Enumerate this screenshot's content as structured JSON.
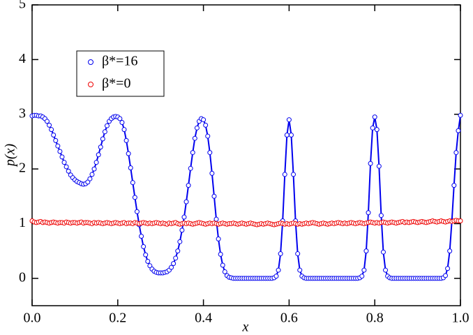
{
  "chart_data": {
    "type": "scatter",
    "xlabel": "x",
    "ylabel": "p(x)",
    "xlim": [
      0,
      1
    ],
    "ylim": [
      -0.5,
      5
    ],
    "xticks": [
      {
        "value": 0,
        "label": "0.0"
      },
      0.2,
      0.4,
      0.6,
      0.8,
      {
        "value": 1,
        "label": "1.0"
      }
    ],
    "yticks": [
      0,
      1,
      2,
      3,
      4,
      5
    ],
    "legend": "upper left",
    "x": [
      0,
      0.005,
      0.01,
      0.015,
      0.02,
      0.025,
      0.03,
      0.035,
      0.04,
      0.045,
      0.05,
      0.055,
      0.06,
      0.065,
      0.07,
      0.075,
      0.08,
      0.085,
      0.09,
      0.095,
      0.1,
      0.105,
      0.11,
      0.115,
      0.12,
      0.125,
      0.13,
      0.135,
      0.14,
      0.145,
      0.15,
      0.155,
      0.16,
      0.165,
      0.17,
      0.175,
      0.18,
      0.185,
      0.19,
      0.195,
      0.2,
      0.205,
      0.21,
      0.215,
      0.22,
      0.225,
      0.23,
      0.235,
      0.24,
      0.245,
      0.25,
      0.255,
      0.26,
      0.265,
      0.27,
      0.275,
      0.28,
      0.285,
      0.29,
      0.295,
      0.3,
      0.305,
      0.31,
      0.315,
      0.32,
      0.325,
      0.33,
      0.335,
      0.34,
      0.345,
      0.35,
      0.355,
      0.36,
      0.365,
      0.37,
      0.375,
      0.38,
      0.385,
      0.39,
      0.395,
      0.4,
      0.405,
      0.41,
      0.415,
      0.42,
      0.425,
      0.43,
      0.435,
      0.44,
      0.445,
      0.45,
      0.455,
      0.46,
      0.465,
      0.47,
      0.475,
      0.48,
      0.485,
      0.49,
      0.495,
      0.5,
      0.505,
      0.51,
      0.515,
      0.52,
      0.525,
      0.53,
      0.535,
      0.54,
      0.545,
      0.55,
      0.555,
      0.56,
      0.565,
      0.57,
      0.575,
      0.58,
      0.585,
      0.59,
      0.595,
      0.6,
      0.605,
      0.61,
      0.615,
      0.62,
      0.625,
      0.63,
      0.635,
      0.64,
      0.645,
      0.65,
      0.655,
      0.66,
      0.665,
      0.67,
      0.675,
      0.68,
      0.685,
      0.69,
      0.695,
      0.7,
      0.705,
      0.71,
      0.715,
      0.72,
      0.725,
      0.73,
      0.735,
      0.74,
      0.745,
      0.75,
      0.755,
      0.76,
      0.765,
      0.77,
      0.775,
      0.78,
      0.785,
      0.79,
      0.795,
      0.8,
      0.805,
      0.81,
      0.815,
      0.82,
      0.825,
      0.83,
      0.835,
      0.84,
      0.845,
      0.85,
      0.855,
      0.86,
      0.865,
      0.87,
      0.875,
      0.88,
      0.885,
      0.89,
      0.895,
      0.9,
      0.905,
      0.91,
      0.915,
      0.92,
      0.925,
      0.93,
      0.935,
      0.94,
      0.945,
      0.95,
      0.955,
      0.96,
      0.965,
      0.97,
      0.975,
      0.98,
      0.985,
      0.99,
      0.995,
      1
    ],
    "series": [
      {
        "name": "β*=16",
        "color": "#0000ee",
        "line": true,
        "values": [
          2.97,
          2.98,
          2.98,
          2.97,
          2.97,
          2.95,
          2.92,
          2.87,
          2.8,
          2.72,
          2.62,
          2.52,
          2.42,
          2.32,
          2.22,
          2.12,
          2.04,
          1.96,
          1.89,
          1.84,
          1.8,
          1.77,
          1.75,
          1.73,
          1.72,
          1.73,
          1.76,
          1.82,
          1.9,
          2,
          2.12,
          2.26,
          2.4,
          2.55,
          2.68,
          2.79,
          2.87,
          2.92,
          2.95,
          2.96,
          2.95,
          2.92,
          2.85,
          2.72,
          2.52,
          2.28,
          2.02,
          1.75,
          1.48,
          1.22,
          0.98,
          0.77,
          0.58,
          0.43,
          0.31,
          0.23,
          0.17,
          0.13,
          0.11,
          0.1,
          0.1,
          0.1,
          0.11,
          0.12,
          0.15,
          0.2,
          0.27,
          0.37,
          0.5,
          0.67,
          0.88,
          1.12,
          1.4,
          1.7,
          2.01,
          2.3,
          2.56,
          2.75,
          2.87,
          2.92,
          2.9,
          2.8,
          2.6,
          2.3,
          1.92,
          1.5,
          1.08,
          0.72,
          0.44,
          0.24,
          0.12,
          0.05,
          0.02,
          0.01,
          0,
          0,
          0,
          0,
          0,
          0,
          0,
          0,
          0,
          0,
          0,
          0,
          0,
          0,
          0,
          0,
          0,
          0,
          0,
          0.01,
          0.04,
          0.15,
          0.45,
          1.05,
          1.9,
          2.62,
          2.9,
          2.62,
          1.9,
          1.05,
          0.45,
          0.15,
          0.04,
          0.01,
          0,
          0,
          0,
          0,
          0,
          0,
          0,
          0,
          0,
          0,
          0,
          0,
          0,
          0,
          0,
          0,
          0,
          0,
          0,
          0,
          0,
          0,
          0,
          0,
          0,
          0.01,
          0.04,
          0.15,
          0.5,
          1.2,
          2.1,
          2.75,
          2.95,
          2.72,
          2.05,
          1.15,
          0.48,
          0.15,
          0.04,
          0.01,
          0,
          0,
          0,
          0,
          0,
          0,
          0,
          0,
          0,
          0,
          0,
          0,
          0,
          0,
          0,
          0,
          0,
          0,
          0,
          0,
          0,
          0,
          0,
          0,
          0.01,
          0.05,
          0.18,
          0.5,
          1.05,
          1.7,
          2.3,
          2.7,
          2.98
        ]
      },
      {
        "name": "β*=0",
        "color": "#ee0000",
        "line": false,
        "values": [
          1.05,
          1.03,
          1.02,
          1.03,
          1.04,
          1.02,
          1.03,
          1.02,
          1.01,
          1.02,
          1.03,
          1.02,
          1.01,
          1.02,
          1.02,
          1.01,
          1.03,
          1.02,
          1.01,
          1.02,
          1.02,
          1.01,
          1.02,
          1.03,
          1.01,
          1.02,
          1.02,
          1.01,
          1,
          1.02,
          1.01,
          1.02,
          1.01,
          1,
          1.01,
          1.02,
          1.01,
          1,
          1.01,
          1.02,
          1.01,
          1,
          1.01,
          1.02,
          1,
          1.01,
          1.01,
          1,
          1.02,
          1.01,
          1,
          1.01,
          1.02,
          1.01,
          1,
          1.01,
          1,
          1.01,
          1.02,
          1.01,
          1,
          1.01,
          1,
          0.99,
          1.01,
          1,
          1.01,
          1.02,
          1,
          0.99,
          1,
          1.01,
          1,
          1.01,
          1,
          0.99,
          1,
          1.01,
          1.02,
          1.01,
          1,
          0.99,
          1,
          1.01,
          1,
          1.01,
          1,
          0.99,
          1,
          1.01,
          1,
          0.99,
          1,
          1,
          1.01,
          1,
          0.99,
          1,
          1.01,
          1,
          0.99,
          1,
          1.01,
          1,
          0.99,
          0.98,
          0.99,
          1,
          0.99,
          1,
          1.01,
          1,
          0.99,
          0.98,
          0.99,
          1,
          1.01,
          1,
          0.99,
          1,
          0.99,
          1,
          1.01,
          1,
          0.99,
          1,
          0.99,
          1,
          1.01,
          1,
          1.01,
          1.02,
          1.01,
          1,
          0.99,
          1,
          1.01,
          1,
          0.99,
          1,
          1.01,
          1,
          1.01,
          1.02,
          1.01,
          1,
          1.01,
          1,
          1.01,
          1.02,
          1.01,
          1,
          1.01,
          1.02,
          1.01,
          1,
          1.01,
          1.02,
          1.03,
          1.02,
          1.01,
          1.02,
          1.01,
          1.02,
          1.03,
          1.02,
          1.01,
          1.02,
          1.03,
          1.02,
          1.01,
          1.02,
          1.03,
          1.04,
          1.02,
          1.03,
          1.02,
          1.03,
          1.04,
          1.03,
          1.02,
          1.03,
          1.04,
          1.03,
          1.02,
          1.03,
          1.04,
          1.05,
          1.04,
          1.03,
          1.04,
          1.05,
          1.04,
          1.03,
          1.04,
          1.05,
          1.04,
          1.05,
          1.06,
          1.05,
          1.05
        ]
      }
    ]
  }
}
